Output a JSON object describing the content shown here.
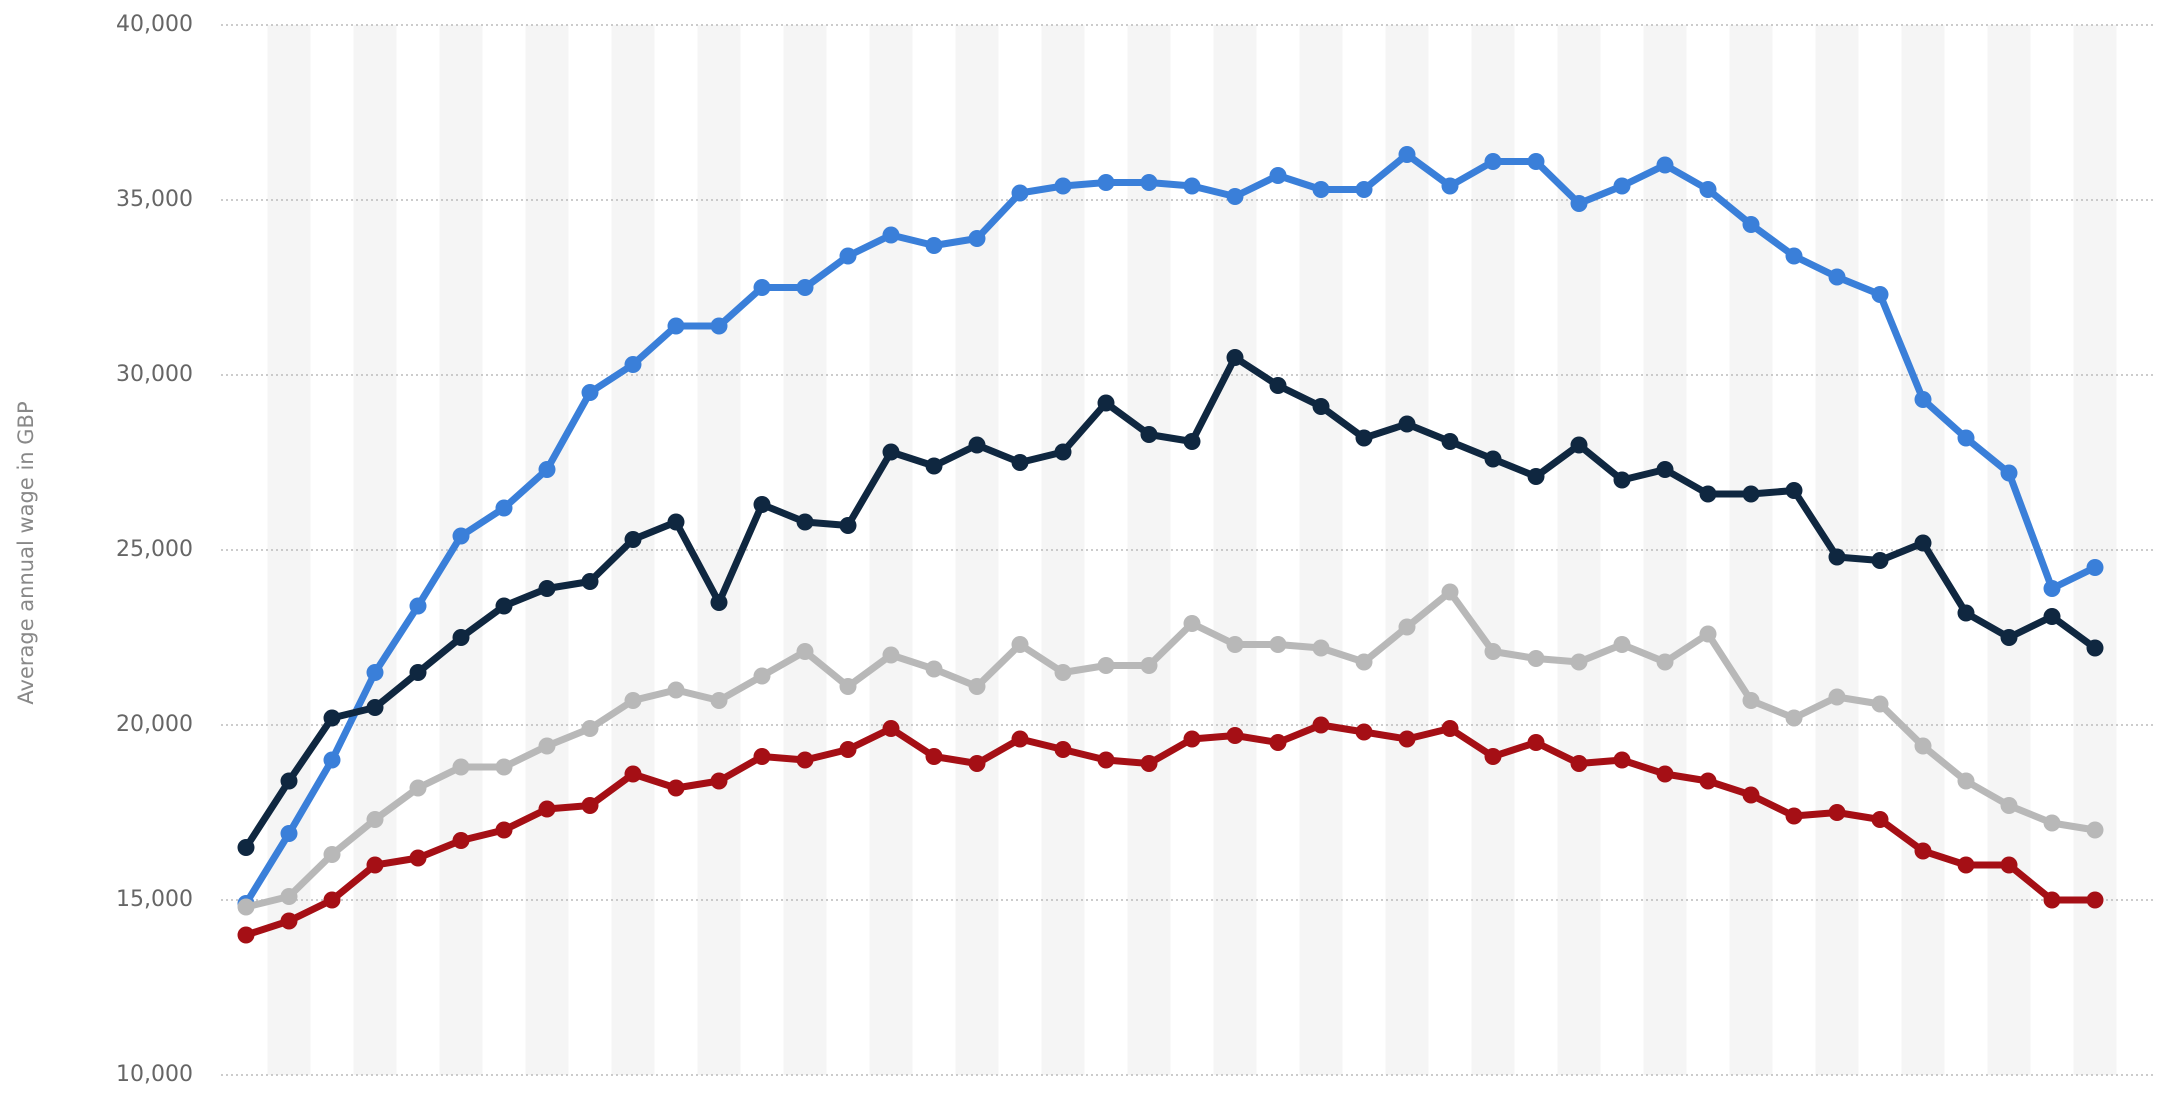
{
  "chart_data": {
    "type": "line",
    "y_label": "Average annual wage in GBP",
    "categories": [
      null,
      null,
      null,
      null,
      null,
      null,
      null,
      null,
      null,
      null,
      null,
      null,
      null,
      null,
      null,
      null,
      null,
      null,
      null,
      null,
      null,
      null,
      null,
      null,
      null,
      null,
      null,
      null,
      null,
      null,
      null,
      null,
      null,
      null,
      null,
      null,
      null,
      null,
      null,
      null,
      null,
      null,
      null,
      null
    ],
    "ylim": [
      10000,
      40000
    ],
    "yticks": [
      {
        "value": 10000,
        "label": "10,000"
      },
      {
        "value": 15000,
        "label": "15,000"
      },
      {
        "value": 20000,
        "label": "20,000"
      },
      {
        "value": 25000,
        "label": "25,000"
      },
      {
        "value": 30000,
        "label": "30,000"
      },
      {
        "value": 35000,
        "label": "35,000"
      },
      {
        "value": 40000,
        "label": "40,000"
      }
    ],
    "grid": true,
    "series": [
      {
        "color": "#3a7fd9",
        "values": [
          14900,
          16900,
          19000,
          21500,
          23400,
          25400,
          26200,
          27300,
          29500,
          30300,
          31400,
          31400,
          32500,
          32500,
          33400,
          34000,
          33700,
          33900,
          35200,
          35400,
          35500,
          35500,
          35400,
          35100,
          35700,
          35300,
          35300,
          36300,
          35400,
          36100,
          36100,
          34900,
          35400,
          36000,
          35300,
          34300,
          33400,
          32800,
          32300,
          29300,
          28200,
          27200,
          23900,
          24500
        ]
      },
      {
        "color": "#0f2740",
        "values": [
          16500,
          18400,
          20200,
          20500,
          21500,
          22500,
          23400,
          23900,
          24100,
          25300,
          25800,
          23500,
          26300,
          25800,
          25700,
          27800,
          27400,
          28000,
          27500,
          27800,
          29200,
          28300,
          28100,
          30500,
          29700,
          29100,
          28200,
          28600,
          28100,
          27600,
          27100,
          28000,
          27000,
          27300,
          26600,
          26600,
          26700,
          24800,
          24700,
          25200,
          23200,
          22500,
          23100,
          22200
        ]
      },
      {
        "color": "#b8b8b8",
        "values": [
          14800,
          15100,
          16300,
          17300,
          18200,
          18800,
          18800,
          19400,
          19900,
          20700,
          21000,
          20700,
          21400,
          22100,
          21100,
          22000,
          21600,
          21100,
          22300,
          21500,
          21700,
          21700,
          22900,
          22300,
          22300,
          22200,
          21800,
          22800,
          23800,
          22100,
          21900,
          21800,
          22300,
          21800,
          22600,
          20700,
          20200,
          20800,
          20600,
          19400,
          18400,
          17700,
          17200,
          17000
        ]
      },
      {
        "color": "#a50f15",
        "values": [
          14000,
          14400,
          15000,
          16000,
          16200,
          16700,
          17000,
          17600,
          17700,
          18600,
          18200,
          18400,
          19100,
          19000,
          19300,
          19900,
          19100,
          18900,
          19600,
          19300,
          19000,
          18900,
          19600,
          19700,
          19500,
          20000,
          19800,
          19600,
          19900,
          19100,
          19500,
          18900,
          19000,
          18600,
          18400,
          18000,
          17400,
          17500,
          17300,
          16400,
          16000,
          16000,
          15000,
          15000
        ]
      }
    ]
  }
}
